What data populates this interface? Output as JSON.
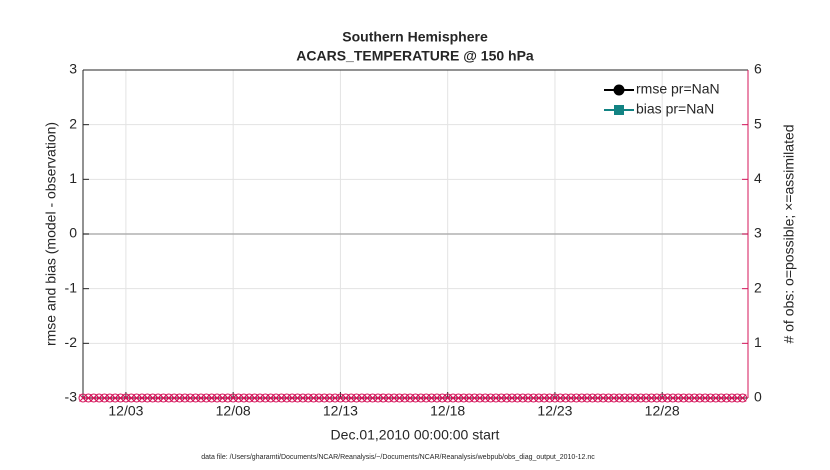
{
  "chart_data": {
    "type": "line",
    "title": "Southern Hemisphere",
    "subtitle": "ACARS_TEMPERATURE @ 150 hPa",
    "xlabel": "Dec.01,2010 00:00:00 start",
    "ylabel": "rmse and bias (model - observation)",
    "y2label": "# of obs: o=possible; ×=assimilated",
    "footnote": "data file: /Users/gharamti/Documents/NCAR/Reanalysis/~/Documents/NCAR/Reanalysis/webpub/obs_diag_output_2010-12.nc",
    "xlim": [
      1,
      32
    ],
    "xticks": [
      {
        "value": 3,
        "label": "12/03"
      },
      {
        "value": 8,
        "label": "12/08"
      },
      {
        "value": 13,
        "label": "12/13"
      },
      {
        "value": 18,
        "label": "12/18"
      },
      {
        "value": 23,
        "label": "12/23"
      },
      {
        "value": 28,
        "label": "12/28"
      }
    ],
    "ylim": [
      -3,
      3
    ],
    "yticks": [
      -3,
      -2,
      -1,
      0,
      1,
      2,
      3
    ],
    "y2lim": [
      0,
      6
    ],
    "y2ticks": [
      0,
      1,
      2,
      3,
      4,
      5,
      6
    ],
    "y2color": "#d4145a",
    "grid": true,
    "legend": "northeast",
    "x": [
      1,
      1.25,
      1.5,
      1.75,
      2,
      2.25,
      2.5,
      2.75,
      3,
      3.25,
      3.5,
      3.75,
      4,
      4.25,
      4.5,
      4.75,
      5,
      5.25,
      5.5,
      5.75,
      6,
      6.25,
      6.5,
      6.75,
      7,
      7.25,
      7.5,
      7.75,
      8,
      8.25,
      8.5,
      8.75,
      9,
      9.25,
      9.5,
      9.75,
      10,
      10.25,
      10.5,
      10.75,
      11,
      11.25,
      11.5,
      11.75,
      12,
      12.25,
      12.5,
      12.75,
      13,
      13.25,
      13.5,
      13.75,
      14,
      14.25,
      14.5,
      14.75,
      15,
      15.25,
      15.5,
      15.75,
      16,
      16.25,
      16.5,
      16.75,
      17,
      17.25,
      17.5,
      17.75,
      18,
      18.25,
      18.5,
      18.75,
      19,
      19.25,
      19.5,
      19.75,
      20,
      20.25,
      20.5,
      20.75,
      21,
      21.25,
      21.5,
      21.75,
      22,
      22.25,
      22.5,
      22.75,
      23,
      23.25,
      23.5,
      23.75,
      24,
      24.25,
      24.5,
      24.75,
      25,
      25.25,
      25.5,
      25.75,
      26,
      26.25,
      26.5,
      26.75,
      27,
      27.25,
      27.5,
      27.75,
      28,
      28.25,
      28.5,
      28.75,
      29,
      29.25,
      29.5,
      29.75,
      30,
      30.25,
      30.5,
      30.75,
      31,
      31.25,
      31.5,
      31.75
    ],
    "series": [
      {
        "name": "rmse pr=NaN",
        "color": "#000000",
        "marker": "circle",
        "axis": "y",
        "values": [
          null,
          null,
          null,
          null,
          null,
          null,
          null,
          null,
          null,
          null,
          null,
          null,
          null,
          null,
          null,
          null,
          null,
          null,
          null,
          null,
          null,
          null,
          null,
          null,
          null,
          null,
          null,
          null,
          null,
          null,
          null,
          null,
          null,
          null,
          null,
          null,
          null,
          null,
          null,
          null,
          null,
          null,
          null,
          null,
          null,
          null,
          null,
          null,
          null,
          null,
          null,
          null,
          null,
          null,
          null,
          null,
          null,
          null,
          null,
          null,
          null,
          null,
          null,
          null,
          null,
          null,
          null,
          null,
          null,
          null,
          null,
          null,
          null,
          null,
          null,
          null,
          null,
          null,
          null,
          null,
          null,
          null,
          null,
          null,
          null,
          null,
          null,
          null,
          null,
          null,
          null,
          null,
          null,
          null,
          null,
          null,
          null,
          null,
          null,
          null,
          null,
          null,
          null,
          null,
          null,
          null,
          null,
          null,
          null,
          null,
          null,
          null,
          null,
          null,
          null,
          null,
          null,
          null,
          null,
          null,
          null,
          null,
          null,
          null
        ]
      },
      {
        "name": "bias pr=NaN",
        "color": "#138383",
        "marker": "square",
        "axis": "y",
        "values": [
          null,
          null,
          null,
          null,
          null,
          null,
          null,
          null,
          null,
          null,
          null,
          null,
          null,
          null,
          null,
          null,
          null,
          null,
          null,
          null,
          null,
          null,
          null,
          null,
          null,
          null,
          null,
          null,
          null,
          null,
          null,
          null,
          null,
          null,
          null,
          null,
          null,
          null,
          null,
          null,
          null,
          null,
          null,
          null,
          null,
          null,
          null,
          null,
          null,
          null,
          null,
          null,
          null,
          null,
          null,
          null,
          null,
          null,
          null,
          null,
          null,
          null,
          null,
          null,
          null,
          null,
          null,
          null,
          null,
          null,
          null,
          null,
          null,
          null,
          null,
          null,
          null,
          null,
          null,
          null,
          null,
          null,
          null,
          null,
          null,
          null,
          null,
          null,
          null,
          null,
          null,
          null,
          null,
          null,
          null,
          null,
          null,
          null,
          null,
          null,
          null,
          null,
          null,
          null,
          null,
          null,
          null,
          null,
          null,
          null,
          null,
          null,
          null,
          null,
          null,
          null,
          null,
          null,
          null,
          null,
          null,
          null,
          null,
          null
        ]
      },
      {
        "color": "#d4145a",
        "marker": "circle",
        "axis": "y2",
        "values": [
          0,
          0,
          0,
          0,
          0,
          0,
          0,
          0,
          0,
          0,
          0,
          0,
          0,
          0,
          0,
          0,
          0,
          0,
          0,
          0,
          0,
          0,
          0,
          0,
          0,
          0,
          0,
          0,
          0,
          0,
          0,
          0,
          0,
          0,
          0,
          0,
          0,
          0,
          0,
          0,
          0,
          0,
          0,
          0,
          0,
          0,
          0,
          0,
          0,
          0,
          0,
          0,
          0,
          0,
          0,
          0,
          0,
          0,
          0,
          0,
          0,
          0,
          0,
          0,
          0,
          0,
          0,
          0,
          0,
          0,
          0,
          0,
          0,
          0,
          0,
          0,
          0,
          0,
          0,
          0,
          0,
          0,
          0,
          0,
          0,
          0,
          0,
          0,
          0,
          0,
          0,
          0,
          0,
          0,
          0,
          0,
          0,
          0,
          0,
          0,
          0,
          0,
          0,
          0,
          0,
          0,
          0,
          0,
          0,
          0,
          0,
          0,
          0,
          0,
          0,
          0,
          0,
          0,
          0,
          0,
          0,
          0,
          0,
          0
        ]
      },
      {
        "color": "#d4145a",
        "marker": "cross",
        "axis": "y2",
        "values": [
          0,
          0,
          0,
          0,
          0,
          0,
          0,
          0,
          0,
          0,
          0,
          0,
          0,
          0,
          0,
          0,
          0,
          0,
          0,
          0,
          0,
          0,
          0,
          0,
          0,
          0,
          0,
          0,
          0,
          0,
          0,
          0,
          0,
          0,
          0,
          0,
          0,
          0,
          0,
          0,
          0,
          0,
          0,
          0,
          0,
          0,
          0,
          0,
          0,
          0,
          0,
          0,
          0,
          0,
          0,
          0,
          0,
          0,
          0,
          0,
          0,
          0,
          0,
          0,
          0,
          0,
          0,
          0,
          0,
          0,
          0,
          0,
          0,
          0,
          0,
          0,
          0,
          0,
          0,
          0,
          0,
          0,
          0,
          0,
          0,
          0,
          0,
          0,
          0,
          0,
          0,
          0,
          0,
          0,
          0,
          0,
          0,
          0,
          0,
          0,
          0,
          0,
          0,
          0,
          0,
          0,
          0,
          0,
          0,
          0,
          0,
          0,
          0,
          0,
          0,
          0,
          0,
          0,
          0,
          0,
          0,
          0,
          0,
          0
        ]
      }
    ]
  }
}
